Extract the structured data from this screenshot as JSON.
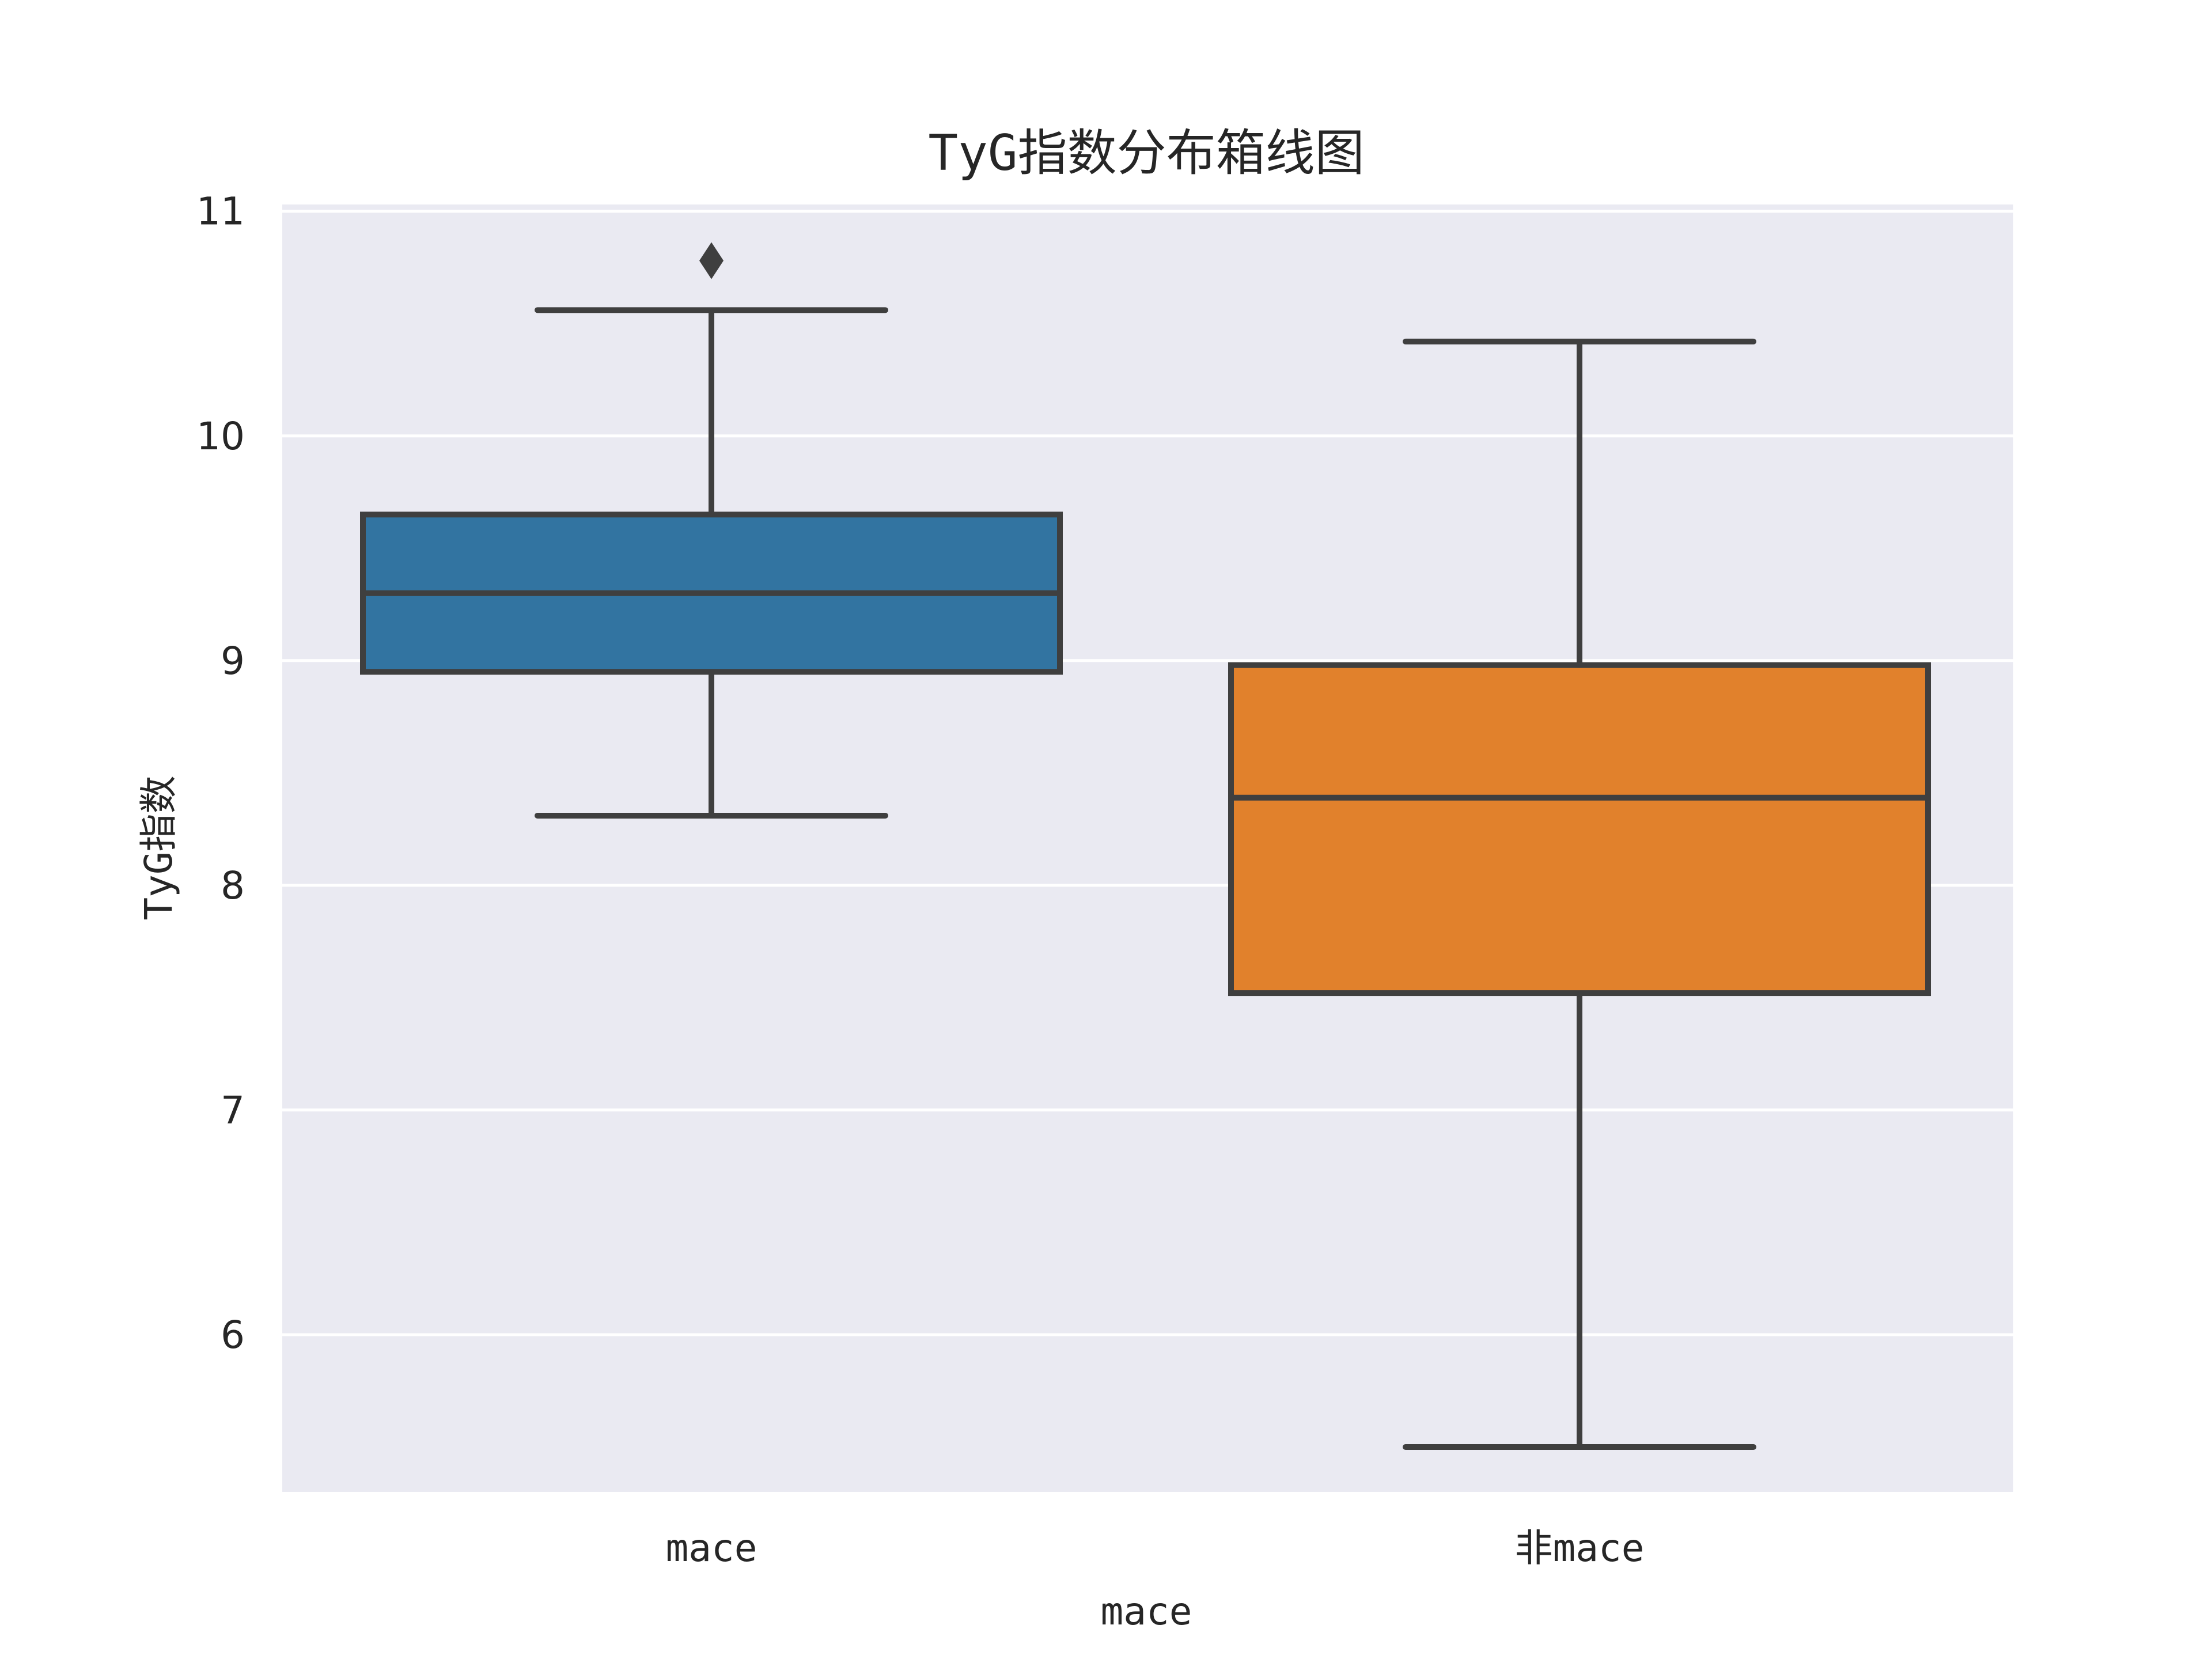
{
  "chart_data": {
    "type": "box",
    "title": "TyG指数分布箱线图",
    "xlabel": "mace",
    "ylabel": "TyG指数",
    "ylim": [
      5.3,
      11.05
    ],
    "yticks": [
      6,
      7,
      8,
      9,
      10,
      11
    ],
    "grid": true,
    "style": {
      "background": "#EAEAF2",
      "grid_color": "#FFFFFF",
      "line_color": "#3F3F3F"
    },
    "categories": [
      "mace",
      "非mace"
    ],
    "boxes": [
      {
        "category": "mace",
        "color": "#3274A1",
        "whisker_low": 8.31,
        "q1": 8.95,
        "median": 9.3,
        "q3": 9.65,
        "whisker_high": 10.56,
        "outliers": [
          10.78
        ]
      },
      {
        "category": "非mace",
        "color": "#E1812C",
        "whisker_low": 5.5,
        "q1": 7.52,
        "median": 8.39,
        "q3": 8.98,
        "whisker_high": 10.42,
        "outliers": []
      }
    ]
  }
}
